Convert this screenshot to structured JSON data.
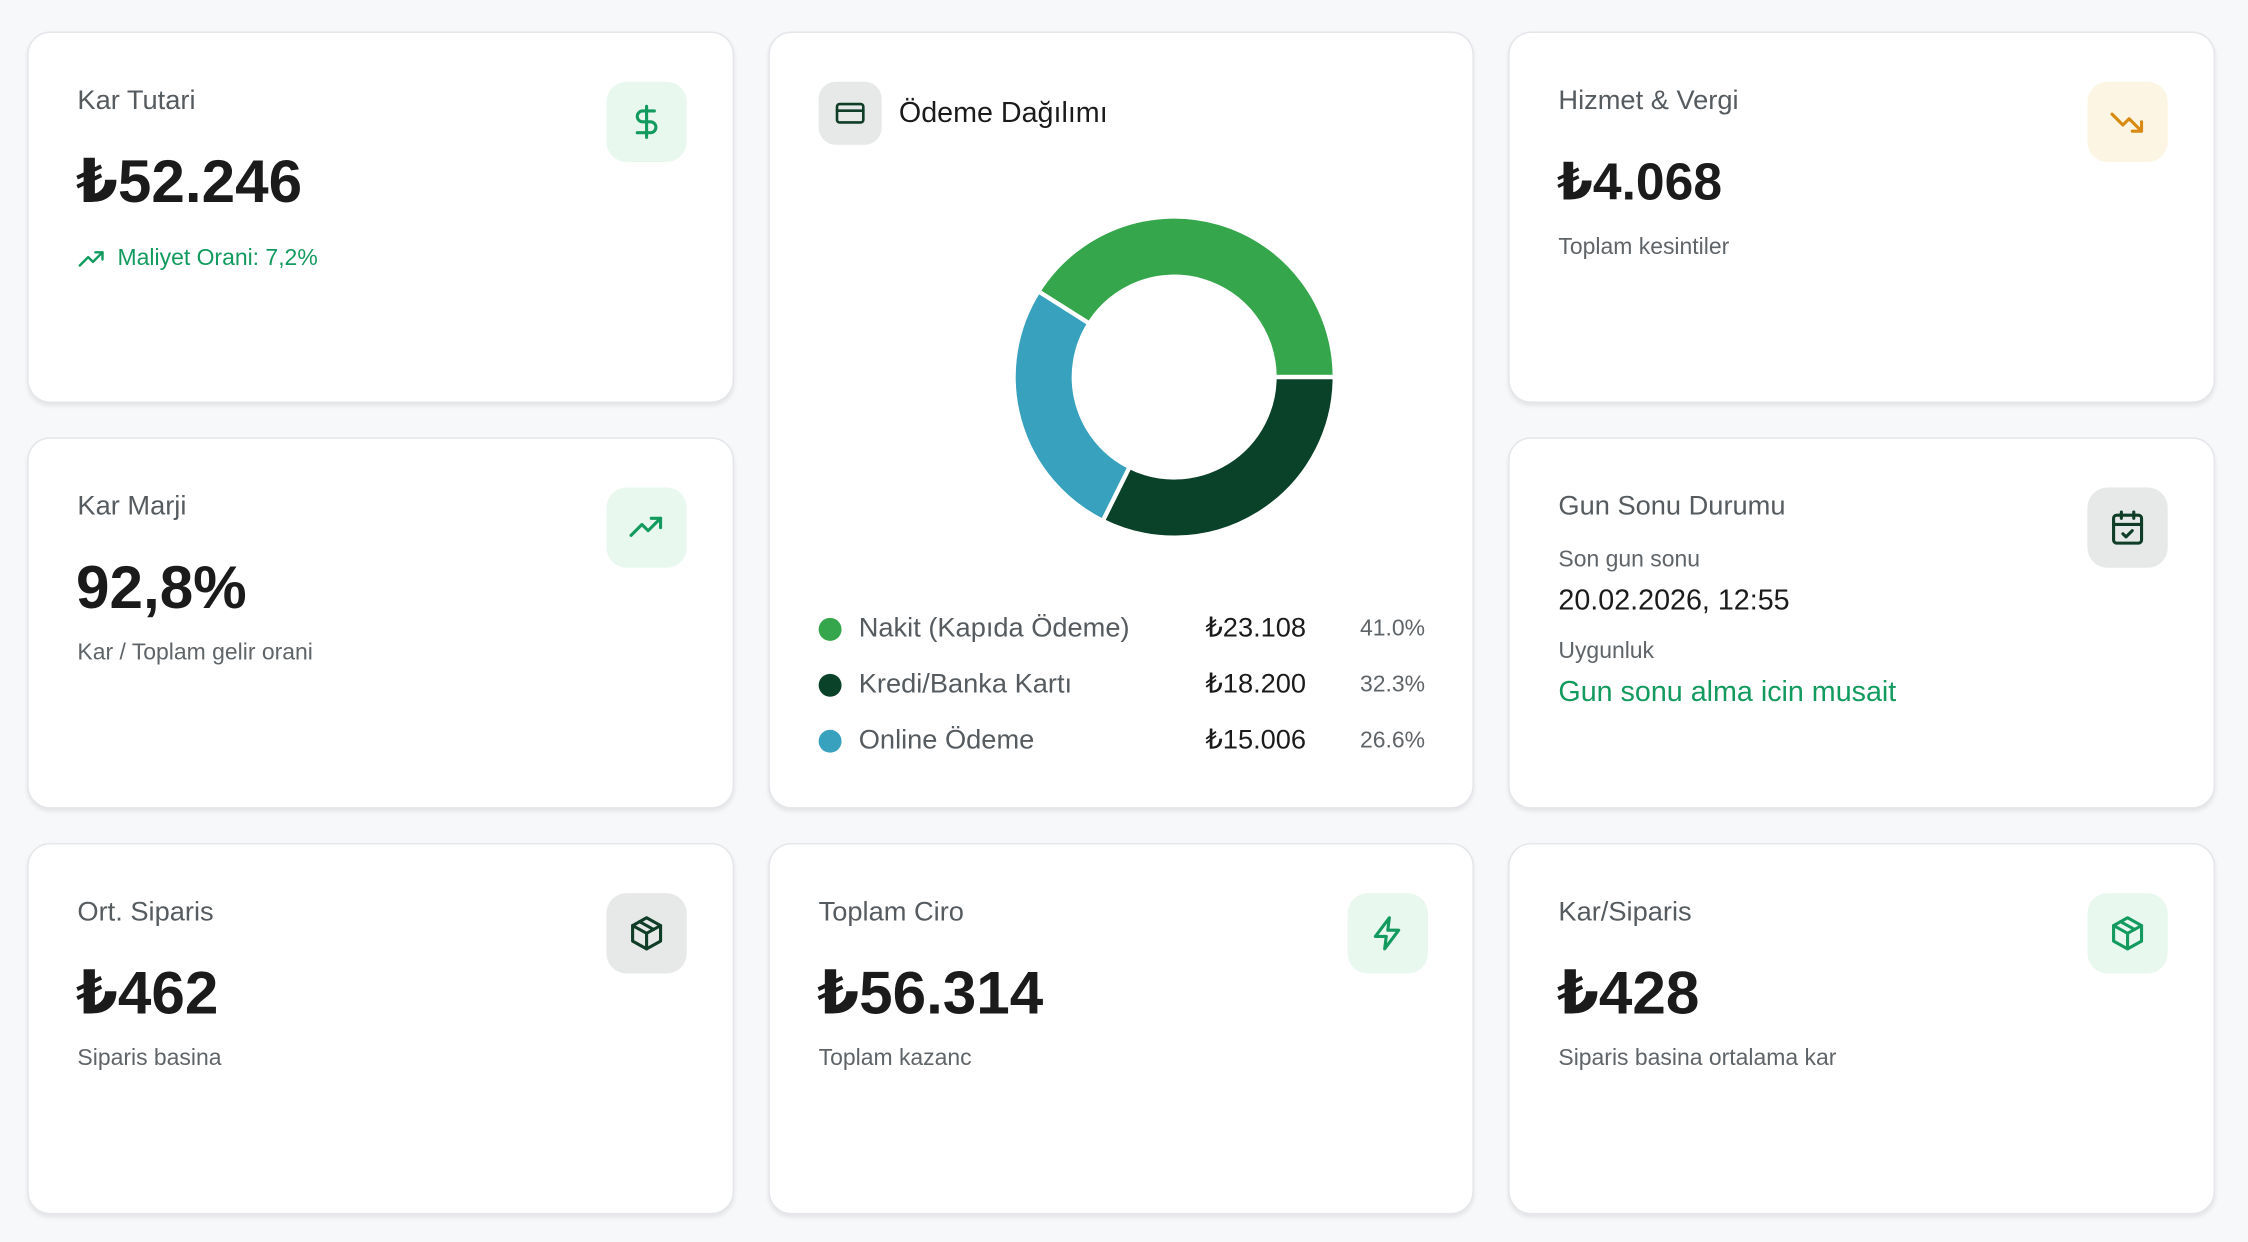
{
  "cards": [
    {
      "title": "Kar Tutari",
      "value": "₺52.246",
      "note": "Maliyet Orani: 7,2%"
    },
    {
      "title": "Hizmet & Vergi",
      "value": "₺4.068",
      "note": "Toplam kesintiler"
    },
    {
      "title": "Kar Marji",
      "value": "92,8%",
      "note": "Kar / Toplam gelir orani"
    },
    {
      "title": "Ort. Siparis",
      "value": "₺462",
      "note": "Siparis basina"
    },
    {
      "title": "Toplam Ciro",
      "value": "₺56.314",
      "note": "Toplam kazanc"
    },
    {
      "title": "Kar/Siparis",
      "value": "₺428",
      "note": "Siparis basina ortalama kar"
    }
  ],
  "payment": {
    "title": "Ödeme Dağılımı",
    "names": [
      "Nakit (Kapıda Ödeme)",
      "Kredi/Banka Kartı",
      "Online Ödeme"
    ],
    "amounts": [
      "₺23.108",
      "₺18.200",
      "₺15.006"
    ],
    "values": [
      41.0,
      32.3,
      26.6
    ],
    "value_labels": [
      "41.0%",
      "32.3%",
      "26.6%"
    ],
    "colors": [
      "#35a64b",
      "#0a4129",
      "#38a1bd"
    ]
  },
  "day_end": {
    "title": "Gun Sonu Durumu",
    "last_label": "Son gun sonu",
    "last_value": "20.02.2026, 12:55",
    "status_label": "Uygunluk",
    "status_value": "Gun sonu alma icin musait"
  }
}
